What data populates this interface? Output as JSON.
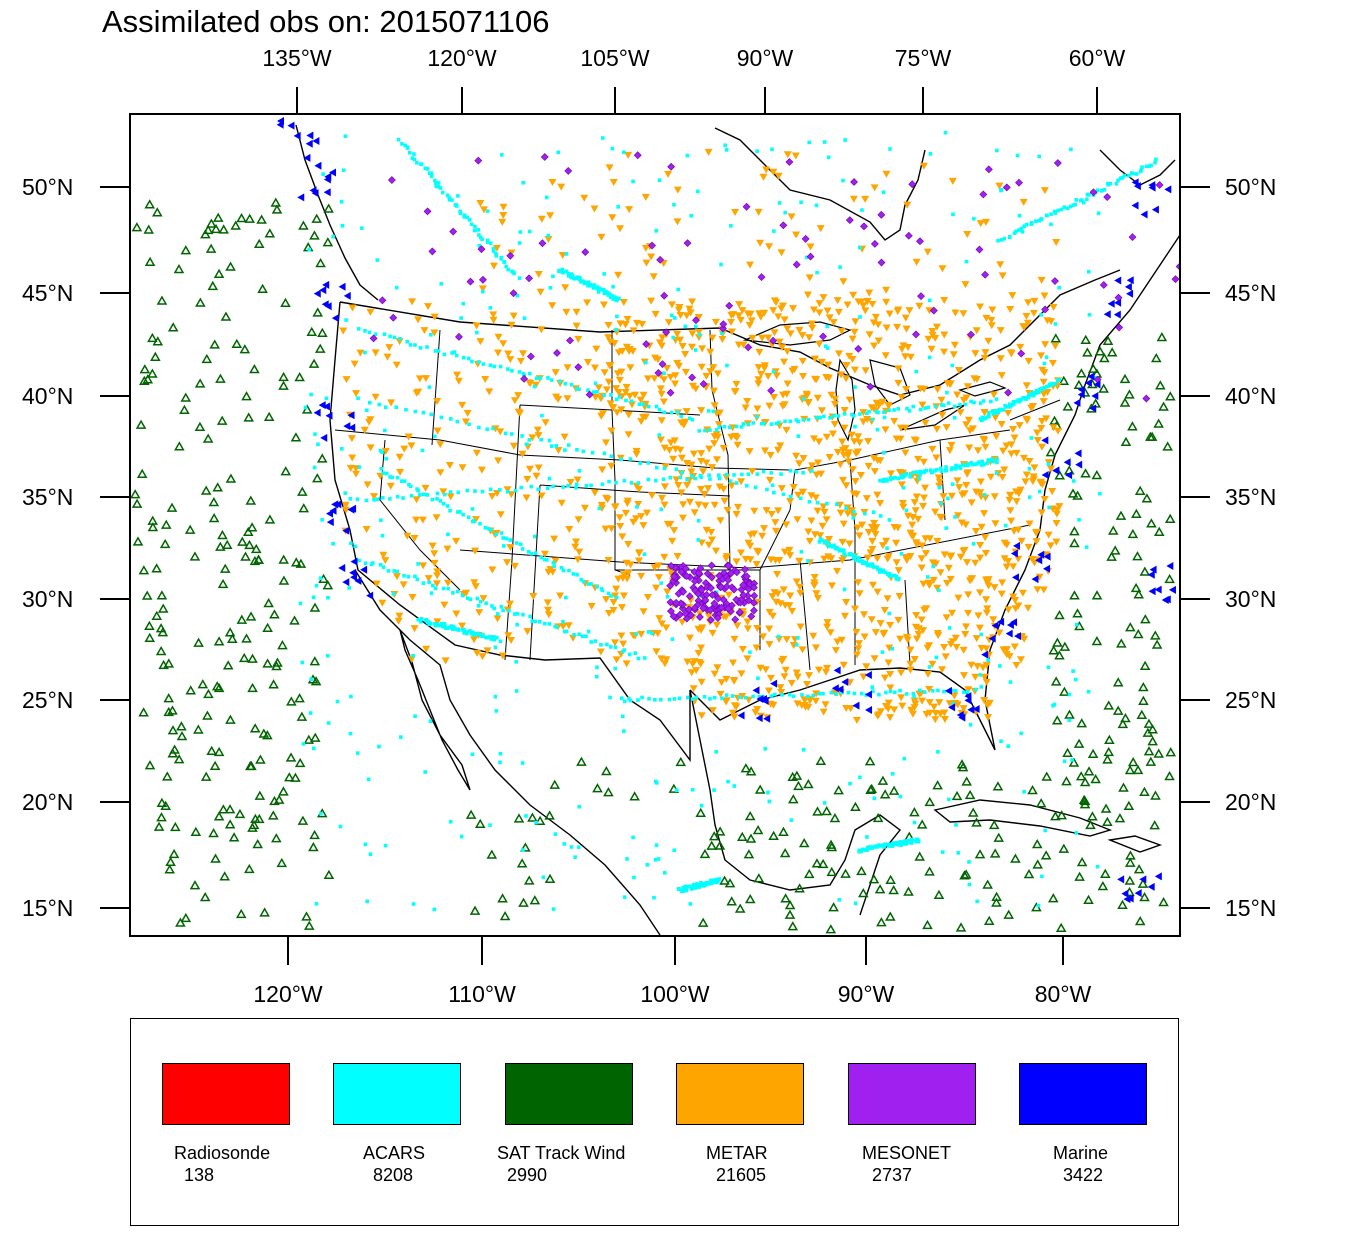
{
  "title": "Assimilated obs on: 2015071106",
  "map": {
    "top_lon_labels": [
      "135°W",
      "120°W",
      "105°W",
      "90°W",
      "75°W",
      "60°W"
    ],
    "bottom_lon_labels": [
      "120°W",
      "110°W",
      "100°W",
      "90°W",
      "80°W"
    ],
    "lat_labels": [
      "50°N",
      "45°N",
      "40°N",
      "35°N",
      "30°N",
      "25°N",
      "20°N",
      "15°N"
    ]
  },
  "chart_data": {
    "type": "scatter",
    "title": "Assimilated obs on: 2015071106",
    "projection": "Lambert conformal, contiguous United States",
    "lat_range": [
      14,
      53
    ],
    "lon_range": [
      -127,
      -58
    ],
    "series": [
      {
        "name": "Radiosonde",
        "count": 138,
        "color": "#ff0000",
        "marker": "none-visible"
      },
      {
        "name": "ACARS",
        "count": 8208,
        "color": "#00ffff",
        "marker": "square"
      },
      {
        "name": "SAT Track Wind",
        "count": 2990,
        "color": "#006400",
        "marker": "open-triangle"
      },
      {
        "name": "METAR",
        "count": 21605,
        "color": "#ffa500",
        "marker": "down-triangle"
      },
      {
        "name": "MESONET",
        "count": 2737,
        "color": "#a020f0",
        "marker": "diamond"
      },
      {
        "name": "Marine",
        "count": 3422,
        "color": "#0000ff",
        "marker": "left-triangle"
      }
    ]
  },
  "legend": {
    "items": [
      {
        "name": "Radiosonde",
        "count": "138",
        "color": "#ff0000"
      },
      {
        "name": "ACARS",
        "count": "8208",
        "color": "#00ffff"
      },
      {
        "name": "SAT Track Wind",
        "count": "2990",
        "color": "#006400"
      },
      {
        "name": "METAR",
        "count": "21605",
        "color": "#ffa500"
      },
      {
        "name": "MESONET",
        "count": "2737",
        "color": "#a020f0"
      },
      {
        "name": "Marine",
        "count": "3422",
        "color": "#0000ff"
      }
    ]
  }
}
